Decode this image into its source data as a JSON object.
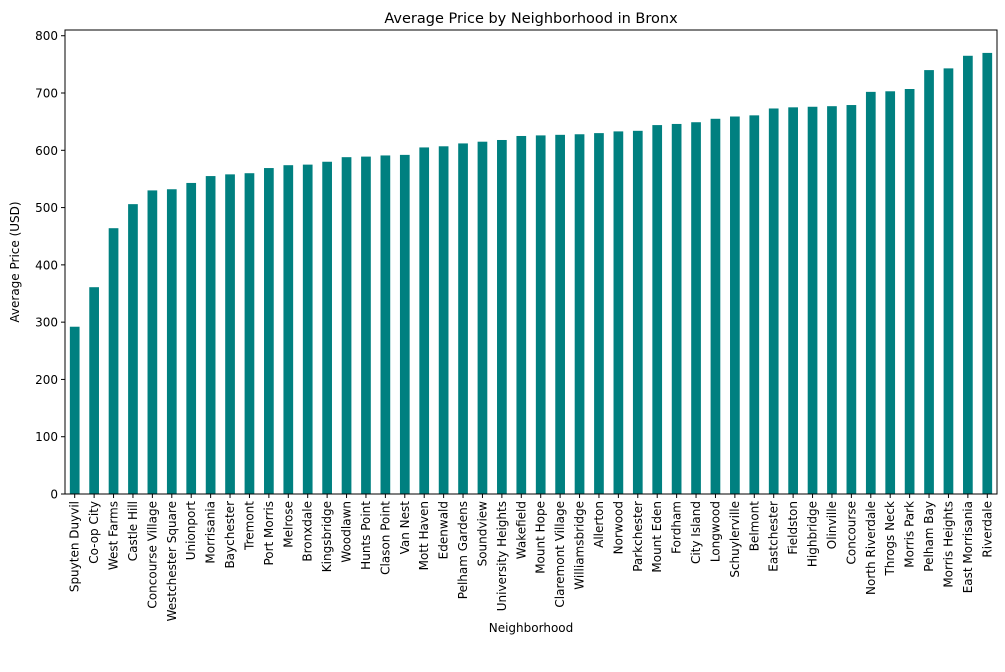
{
  "chart_data": {
    "type": "bar",
    "title": "Average Price by Neighborhood in Bronx",
    "xlabel": "Neighborhood",
    "ylabel": "Average Price (USD)",
    "ylim": [
      0,
      810
    ],
    "yticks": [
      0,
      100,
      200,
      300,
      400,
      500,
      600,
      700,
      800
    ],
    "grid": false,
    "bar_color": "#008080",
    "categories": [
      "Spuyten Duyvil",
      "Co-op City",
      "West Farms",
      "Castle Hill",
      "Concourse Village",
      "Westchester Square",
      "Unionport",
      "Morrisania",
      "Baychester",
      "Tremont",
      "Port Morris",
      "Melrose",
      "Bronxdale",
      "Kingsbridge",
      "Woodlawn",
      "Hunts Point",
      "Clason Point",
      "Van Nest",
      "Mott Haven",
      "Edenwald",
      "Pelham Gardens",
      "Soundview",
      "University Heights",
      "Wakefield",
      "Mount Hope",
      "Claremont Village",
      "Williamsbridge",
      "Allerton",
      "Norwood",
      "Parkchester",
      "Mount Eden",
      "Fordham",
      "City Island",
      "Longwood",
      "Schuylerville",
      "Belmont",
      "Eastchester",
      "Fieldston",
      "Highbridge",
      "Olinville",
      "Concourse",
      "North Riverdale",
      "Throgs Neck",
      "Morris Park",
      "Pelham Bay",
      "Morris Heights",
      "East Morrisania",
      "Riverdale"
    ],
    "values": [
      292,
      361,
      464,
      506,
      530,
      532,
      543,
      555,
      558,
      560,
      569,
      574,
      575,
      580,
      588,
      589,
      591,
      592,
      605,
      607,
      612,
      615,
      618,
      625,
      626,
      627,
      628,
      630,
      633,
      634,
      644,
      646,
      649,
      655,
      659,
      661,
      673,
      675,
      676,
      677,
      679,
      702,
      703,
      707,
      740,
      743,
      765,
      770
    ]
  }
}
